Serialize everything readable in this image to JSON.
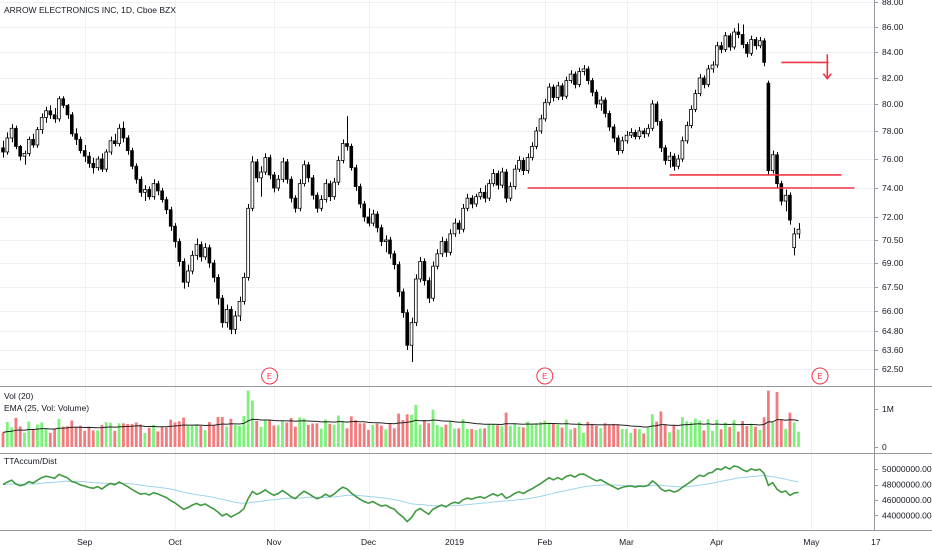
{
  "title": "ARROW ELECTRONICS INC, 1D, Cboe BZX",
  "panes": {
    "volume_label": "Vol (20)",
    "ema_label": "EMA (25, Vol: Volume)",
    "accum_label": "TTAccum/Dist"
  },
  "colors": {
    "up_candle": "#ffffff",
    "down_candle": "#000000",
    "vol_up": "#7cf27a",
    "vol_down": "#f47b7d",
    "ema_line": "#222222",
    "accum_line": "#3f9a3f",
    "accum_ma": "#9fd3ec",
    "annotation": "#f23645"
  },
  "chart_data": [
    {
      "type": "candlestick",
      "title": "ARROW ELECTRONICS INC, 1D, Cboe BZX",
      "x_labels": [
        "Sep",
        "Oct",
        "Nov",
        "Dec",
        "2019",
        "Feb",
        "Mar",
        "Apr",
        "May",
        "17"
      ],
      "y_ticks": [
        88.0,
        86.0,
        84.0,
        82.0,
        80.0,
        78.0,
        76.0,
        74.0,
        72.0,
        70.5,
        69.0,
        67.5,
        66.0,
        64.8,
        63.6,
        62.5
      ],
      "y_tick_labels": [
        "88.00",
        "86.00",
        "84.00",
        "82.00",
        "80.00",
        "78.00",
        "76.00",
        "74.00",
        "72.00",
        "70.50",
        "69.00",
        "67.50",
        "66.00",
        "64.80",
        "63.60",
        "62.50"
      ],
      "ylim": [
        62.0,
        88.5
      ],
      "earnings_markers": [
        {
          "label": "E",
          "index": 62
        },
        {
          "label": "E",
          "index": 126
        },
        {
          "label": "E",
          "index": 190
        }
      ],
      "annotations": {
        "support_lines": [
          {
            "price": 74.0,
            "from_index": 122,
            "to_index": 198
          },
          {
            "price": 74.9,
            "from_index": 155,
            "to_index": 195
          }
        ],
        "top_line": {
          "price": 83.2,
          "from_index": 181,
          "to_index": 192
        },
        "arrow": {
          "index": 191,
          "from_price": 82.9,
          "to_price": 81.8
        }
      },
      "candles": [
        [
          76.8,
          77.3,
          76.1,
          76.5
        ],
        [
          76.5,
          77.9,
          76.3,
          77.5
        ],
        [
          77.5,
          78.5,
          77.2,
          78.2
        ],
        [
          78.2,
          78.4,
          76.7,
          76.9
        ],
        [
          76.9,
          77.0,
          75.9,
          76.2
        ],
        [
          76.2,
          76.6,
          75.6,
          76.4
        ],
        [
          76.4,
          77.6,
          76.2,
          77.4
        ],
        [
          77.4,
          77.8,
          76.8,
          77.0
        ],
        [
          77.0,
          78.3,
          76.8,
          78.1
        ],
        [
          78.1,
          79.3,
          77.8,
          79.0
        ],
        [
          79.0,
          79.8,
          78.6,
          79.5
        ],
        [
          79.5,
          79.9,
          78.9,
          79.2
        ],
        [
          79.2,
          79.7,
          78.6,
          78.9
        ],
        [
          78.9,
          80.6,
          78.7,
          80.4
        ],
        [
          80.4,
          80.6,
          79.7,
          79.9
        ],
        [
          79.9,
          80.0,
          78.9,
          79.2
        ],
        [
          79.2,
          79.4,
          77.6,
          77.8
        ],
        [
          77.8,
          78.2,
          77.0,
          77.4
        ],
        [
          77.4,
          77.6,
          76.4,
          76.6
        ],
        [
          76.6,
          77.0,
          75.8,
          76.2
        ],
        [
          76.2,
          76.5,
          75.4,
          75.7
        ],
        [
          75.7,
          76.1,
          75.0,
          75.4
        ],
        [
          75.4,
          76.2,
          75.2,
          76.0
        ],
        [
          76.0,
          76.4,
          75.1,
          75.3
        ],
        [
          75.3,
          76.7,
          75.1,
          76.5
        ],
        [
          76.5,
          77.6,
          76.3,
          77.3
        ],
        [
          77.3,
          77.8,
          76.9,
          77.1
        ],
        [
          77.1,
          78.5,
          76.9,
          78.2
        ],
        [
          78.2,
          78.7,
          77.2,
          77.5
        ],
        [
          77.5,
          77.7,
          76.3,
          76.6
        ],
        [
          76.6,
          76.8,
          75.3,
          75.5
        ],
        [
          75.5,
          75.7,
          74.3,
          74.6
        ],
        [
          74.6,
          74.8,
          73.4,
          73.7
        ],
        [
          73.7,
          74.2,
          73.1,
          73.9
        ],
        [
          73.9,
          74.1,
          73.2,
          73.4
        ],
        [
          73.4,
          74.6,
          73.2,
          74.3
        ],
        [
          74.3,
          74.5,
          73.5,
          73.8
        ],
        [
          73.8,
          74.0,
          73.0,
          73.2
        ],
        [
          73.2,
          73.4,
          72.2,
          72.5
        ],
        [
          72.5,
          72.7,
          71.1,
          71.4
        ],
        [
          71.4,
          71.6,
          70.0,
          70.4
        ],
        [
          70.4,
          70.6,
          68.8,
          69.1
        ],
        [
          69.1,
          69.3,
          67.4,
          67.8
        ],
        [
          67.8,
          68.9,
          67.5,
          68.5
        ],
        [
          68.5,
          69.8,
          68.3,
          69.5
        ],
        [
          69.5,
          70.6,
          69.2,
          70.2
        ],
        [
          70.2,
          70.4,
          69.1,
          69.4
        ],
        [
          69.4,
          70.3,
          69.2,
          70.0
        ],
        [
          70.0,
          70.2,
          68.7,
          69.0
        ],
        [
          69.0,
          69.2,
          67.8,
          68.1
        ],
        [
          68.1,
          68.3,
          66.4,
          66.8
        ],
        [
          66.8,
          67.0,
          65.0,
          65.3
        ],
        [
          65.3,
          66.4,
          65.0,
          66.1
        ],
        [
          66.1,
          66.3,
          64.6,
          64.9
        ],
        [
          64.9,
          66.0,
          64.6,
          65.7
        ],
        [
          65.7,
          66.9,
          65.4,
          66.6
        ],
        [
          66.6,
          68.4,
          66.4,
          68.1
        ],
        [
          68.1,
          72.9,
          67.9,
          72.6
        ],
        [
          72.6,
          76.2,
          72.4,
          75.8
        ],
        [
          75.8,
          76.0,
          74.4,
          74.7
        ],
        [
          74.7,
          75.5,
          73.4,
          75.1
        ],
        [
          75.1,
          76.4,
          74.9,
          76.1
        ],
        [
          76.1,
          76.3,
          74.6,
          74.9
        ],
        [
          74.9,
          75.1,
          73.7,
          74.0
        ],
        [
          74.0,
          74.9,
          73.8,
          74.6
        ],
        [
          74.6,
          76.1,
          74.4,
          75.8
        ],
        [
          75.8,
          76.0,
          74.3,
          74.6
        ],
        [
          74.6,
          74.8,
          73.0,
          73.3
        ],
        [
          73.3,
          73.5,
          72.3,
          72.6
        ],
        [
          72.6,
          74.6,
          72.4,
          74.3
        ],
        [
          74.3,
          75.9,
          74.1,
          75.6
        ],
        [
          75.6,
          75.8,
          74.4,
          74.7
        ],
        [
          74.7,
          74.9,
          73.2,
          73.5
        ],
        [
          73.5,
          73.7,
          72.3,
          72.6
        ],
        [
          72.6,
          73.5,
          72.4,
          73.2
        ],
        [
          73.2,
          74.6,
          73.0,
          74.3
        ],
        [
          74.3,
          74.5,
          73.1,
          73.4
        ],
        [
          73.4,
          74.7,
          73.2,
          74.4
        ],
        [
          74.4,
          76.2,
          74.2,
          75.9
        ],
        [
          75.9,
          77.4,
          75.7,
          77.1
        ],
        [
          77.1,
          79.1,
          76.6,
          76.9
        ],
        [
          76.9,
          77.1,
          75.2,
          75.4
        ],
        [
          75.4,
          75.6,
          73.8,
          74.1
        ],
        [
          74.1,
          74.3,
          72.6,
          72.9
        ],
        [
          72.9,
          73.1,
          71.7,
          72.0
        ],
        [
          72.0,
          72.6,
          71.4,
          71.6
        ],
        [
          71.6,
          72.5,
          71.4,
          72.2
        ],
        [
          72.2,
          72.4,
          71.0,
          71.3
        ],
        [
          71.3,
          71.5,
          70.1,
          70.4
        ],
        [
          70.4,
          70.8,
          69.7,
          70.5
        ],
        [
          70.5,
          70.7,
          69.3,
          69.6
        ],
        [
          69.6,
          69.8,
          68.6,
          68.9
        ],
        [
          68.9,
          69.1,
          66.9,
          67.2
        ],
        [
          67.2,
          67.4,
          65.6,
          65.9
        ],
        [
          65.9,
          66.1,
          63.6,
          63.9
        ],
        [
          63.9,
          65.6,
          62.9,
          65.3
        ],
        [
          65.3,
          68.3,
          65.1,
          68.0
        ],
        [
          68.0,
          69.4,
          67.8,
          69.1
        ],
        [
          69.1,
          69.3,
          67.6,
          67.9
        ],
        [
          67.9,
          68.1,
          66.5,
          66.8
        ],
        [
          66.8,
          69.1,
          66.6,
          68.8
        ],
        [
          68.8,
          69.9,
          68.6,
          69.6
        ],
        [
          69.6,
          70.7,
          69.4,
          70.4
        ],
        [
          70.4,
          70.6,
          69.4,
          69.7
        ],
        [
          69.7,
          71.2,
          69.5,
          70.9
        ],
        [
          70.9,
          71.9,
          70.7,
          71.6
        ],
        [
          71.6,
          71.8,
          70.9,
          71.2
        ],
        [
          71.2,
          72.9,
          71.0,
          72.6
        ],
        [
          72.6,
          73.6,
          72.4,
          73.3
        ],
        [
          73.3,
          73.5,
          72.6,
          72.9
        ],
        [
          72.9,
          73.6,
          72.7,
          73.4
        ],
        [
          73.4,
          74.0,
          73.2,
          73.7
        ],
        [
          73.7,
          74.2,
          73.0,
          73.3
        ],
        [
          73.3,
          74.6,
          73.1,
          74.3
        ],
        [
          74.3,
          75.3,
          74.1,
          75.0
        ],
        [
          75.0,
          75.2,
          73.9,
          74.2
        ],
        [
          74.2,
          75.4,
          74.0,
          75.1
        ],
        [
          75.1,
          75.3,
          73.0,
          73.3
        ],
        [
          73.3,
          74.4,
          73.1,
          74.1
        ],
        [
          74.1,
          75.6,
          73.9,
          75.3
        ],
        [
          75.3,
          76.2,
          75.1,
          75.9
        ],
        [
          75.9,
          76.1,
          74.9,
          75.2
        ],
        [
          75.2,
          76.4,
          75.0,
          76.1
        ],
        [
          76.1,
          77.2,
          75.9,
          76.9
        ],
        [
          76.9,
          78.3,
          76.7,
          78.0
        ],
        [
          78.0,
          79.2,
          77.8,
          78.9
        ],
        [
          78.9,
          80.4,
          78.7,
          80.1
        ],
        [
          80.1,
          81.6,
          79.9,
          81.3
        ],
        [
          81.3,
          81.5,
          80.2,
          80.5
        ],
        [
          80.5,
          81.7,
          80.3,
          81.4
        ],
        [
          81.4,
          81.6,
          80.3,
          80.6
        ],
        [
          80.6,
          82.1,
          80.4,
          81.8
        ],
        [
          81.8,
          82.6,
          81.6,
          82.3
        ],
        [
          82.3,
          82.5,
          81.2,
          81.5
        ],
        [
          81.5,
          82.8,
          81.3,
          82.5
        ],
        [
          82.5,
          83.0,
          82.2,
          82.7
        ],
        [
          82.7,
          82.9,
          81.5,
          81.8
        ],
        [
          81.8,
          82.0,
          80.6,
          80.9
        ],
        [
          80.9,
          81.1,
          79.7,
          80.0
        ],
        [
          80.0,
          80.6,
          79.5,
          80.3
        ],
        [
          80.3,
          80.5,
          79.0,
          79.3
        ],
        [
          79.3,
          79.5,
          78.0,
          78.3
        ],
        [
          78.3,
          78.5,
          77.2,
          77.5
        ],
        [
          77.5,
          77.7,
          76.3,
          76.6
        ],
        [
          76.6,
          77.6,
          76.4,
          77.3
        ],
        [
          77.3,
          78.0,
          77.1,
          77.7
        ],
        [
          77.7,
          78.2,
          77.5,
          77.9
        ],
        [
          77.9,
          78.1,
          77.4,
          77.6
        ],
        [
          77.6,
          78.3,
          77.4,
          78.0
        ],
        [
          78.0,
          78.2,
          77.5,
          77.8
        ],
        [
          77.8,
          78.5,
          77.6,
          78.2
        ],
        [
          78.2,
          80.3,
          78.0,
          80.0
        ],
        [
          80.0,
          80.2,
          78.4,
          78.7
        ],
        [
          78.7,
          78.9,
          76.5,
          76.8
        ],
        [
          76.8,
          77.0,
          75.6,
          75.9
        ],
        [
          75.9,
          76.5,
          75.4,
          76.2
        ],
        [
          76.2,
          76.4,
          75.2,
          75.5
        ],
        [
          75.5,
          76.3,
          75.3,
          76.0
        ],
        [
          76.0,
          77.6,
          75.8,
          77.3
        ],
        [
          77.3,
          78.7,
          77.1,
          78.4
        ],
        [
          78.4,
          79.9,
          78.2,
          79.6
        ],
        [
          79.6,
          81.1,
          79.4,
          80.8
        ],
        [
          80.8,
          82.3,
          80.6,
          82.0
        ],
        [
          82.0,
          82.2,
          81.2,
          81.5
        ],
        [
          81.5,
          83.0,
          81.3,
          82.7
        ],
        [
          82.7,
          83.3,
          82.4,
          83.0
        ],
        [
          83.0,
          84.8,
          82.8,
          84.5
        ],
        [
          84.5,
          84.8,
          83.9,
          84.2
        ],
        [
          84.2,
          85.6,
          84.0,
          85.3
        ],
        [
          85.3,
          85.5,
          84.1,
          84.4
        ],
        [
          84.4,
          85.9,
          84.2,
          85.6
        ],
        [
          85.6,
          86.3,
          85.1,
          85.4
        ],
        [
          85.4,
          86.2,
          84.3,
          84.6
        ],
        [
          84.6,
          84.8,
          83.6,
          83.9
        ],
        [
          83.9,
          85.3,
          83.7,
          85.0
        ],
        [
          85.0,
          85.2,
          84.2,
          84.5
        ],
        [
          84.5,
          85.2,
          84.3,
          84.9
        ],
        [
          84.9,
          85.1,
          82.9,
          83.2
        ],
        [
          81.6,
          81.8,
          74.9,
          75.2
        ],
        [
          75.2,
          76.6,
          75.0,
          76.3
        ],
        [
          76.3,
          76.5,
          74.0,
          74.3
        ],
        [
          74.3,
          74.5,
          72.8,
          73.1
        ],
        [
          73.1,
          73.9,
          72.4,
          73.5
        ],
        [
          73.5,
          73.7,
          71.5,
          71.8
        ],
        [
          70.0,
          71.3,
          69.5,
          70.9
        ],
        [
          70.9,
          71.6,
          70.6,
          71.2
        ]
      ],
      "volume": {
        "label": "Vol (20)",
        "ema_label": "EMA (25, Vol: Volume)",
        "y_ticks": [
          0,
          1000000
        ],
        "y_tick_labels": [
          "0",
          "1M"
        ],
        "ylim": [
          0,
          1500000
        ]
      },
      "accum_dist": {
        "label": "TTAccum/Dist",
        "y_ticks": [
          44000000,
          46000000,
          48000000,
          50000000
        ],
        "y_tick_labels": [
          "44000000.00",
          "46000000.00",
          "48000000.00",
          "50000000.00"
        ],
        "ylim": [
          42500000,
          51300000
        ]
      }
    }
  ]
}
